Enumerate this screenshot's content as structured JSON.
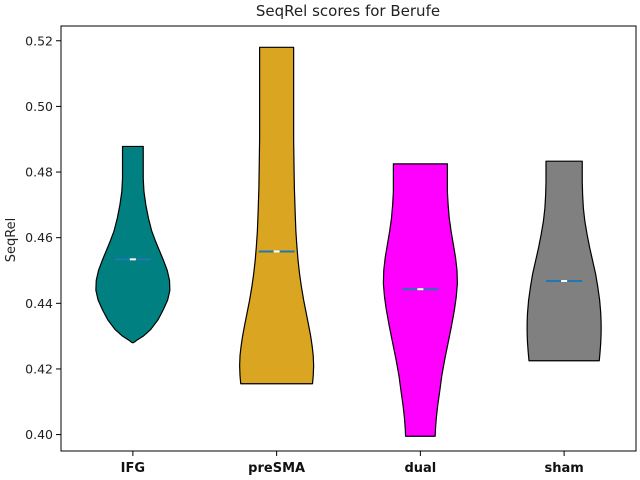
{
  "chart_data": {
    "type": "violin",
    "title": "SeqRel scores for Berufe",
    "xlabel": "",
    "ylabel": "SeqRel",
    "ylim": [
      0.395,
      0.5245
    ],
    "yticks": [
      "0.40",
      "0.42",
      "0.44",
      "0.46",
      "0.48",
      "0.50",
      "0.52"
    ],
    "grid": false,
    "categories": [
      "IFG",
      "preSMA",
      "dual",
      "sham"
    ],
    "series": [
      {
        "category": "IFG",
        "color": "#008080",
        "min": 0.428,
        "max": 0.4878,
        "median": 0.4534,
        "profile": [
          [
            0.428,
            0.02
          ],
          [
            0.4287,
            0.1
          ],
          [
            0.43,
            0.28
          ],
          [
            0.432,
            0.48
          ],
          [
            0.435,
            0.68
          ],
          [
            0.438,
            0.82
          ],
          [
            0.441,
            0.94
          ],
          [
            0.444,
            1.0
          ],
          [
            0.447,
            0.99
          ],
          [
            0.45,
            0.93
          ],
          [
            0.453,
            0.83
          ],
          [
            0.456,
            0.72
          ],
          [
            0.459,
            0.61
          ],
          [
            0.462,
            0.51
          ],
          [
            0.466,
            0.42
          ],
          [
            0.47,
            0.35
          ],
          [
            0.474,
            0.3
          ],
          [
            0.478,
            0.28
          ],
          [
            0.482,
            0.28
          ],
          [
            0.485,
            0.28
          ],
          [
            0.4878,
            0.28
          ]
        ]
      },
      {
        "category": "preSMA",
        "color": "#DAA520",
        "min": 0.4155,
        "max": 0.518,
        "median": 0.4558,
        "profile": [
          [
            0.4155,
            0.97
          ],
          [
            0.418,
            0.99
          ],
          [
            0.421,
            1.0
          ],
          [
            0.424,
            0.99
          ],
          [
            0.427,
            0.96
          ],
          [
            0.43,
            0.92
          ],
          [
            0.433,
            0.87
          ],
          [
            0.437,
            0.8
          ],
          [
            0.441,
            0.73
          ],
          [
            0.445,
            0.67
          ],
          [
            0.449,
            0.62
          ],
          [
            0.453,
            0.58
          ],
          [
            0.457,
            0.55
          ],
          [
            0.462,
            0.52
          ],
          [
            0.468,
            0.5
          ],
          [
            0.475,
            0.48
          ],
          [
            0.482,
            0.47
          ],
          [
            0.49,
            0.46
          ],
          [
            0.498,
            0.46
          ],
          [
            0.506,
            0.46
          ],
          [
            0.512,
            0.46
          ],
          [
            0.518,
            0.46
          ]
        ]
      },
      {
        "category": "dual",
        "color": "#FF00FF",
        "min": 0.3995,
        "max": 0.4825,
        "median": 0.4443,
        "profile": [
          [
            0.3995,
            0.4
          ],
          [
            0.402,
            0.41
          ],
          [
            0.405,
            0.43
          ],
          [
            0.409,
            0.47
          ],
          [
            0.413,
            0.52
          ],
          [
            0.418,
            0.58
          ],
          [
            0.423,
            0.66
          ],
          [
            0.428,
            0.75
          ],
          [
            0.433,
            0.84
          ],
          [
            0.438,
            0.92
          ],
          [
            0.442,
            0.97
          ],
          [
            0.446,
            1.0
          ],
          [
            0.45,
            0.99
          ],
          [
            0.454,
            0.95
          ],
          [
            0.458,
            0.89
          ],
          [
            0.462,
            0.83
          ],
          [
            0.466,
            0.78
          ],
          [
            0.47,
            0.75
          ],
          [
            0.474,
            0.73
          ],
          [
            0.478,
            0.73
          ],
          [
            0.4825,
            0.73
          ]
        ]
      },
      {
        "category": "sham",
        "color": "#808080",
        "min": 0.4225,
        "max": 0.4833,
        "median": 0.4468,
        "profile": [
          [
            0.4225,
            0.95
          ],
          [
            0.425,
            0.97
          ],
          [
            0.428,
            0.99
          ],
          [
            0.431,
            1.0
          ],
          [
            0.434,
            1.0
          ],
          [
            0.437,
            0.99
          ],
          [
            0.441,
            0.96
          ],
          [
            0.445,
            0.91
          ],
          [
            0.449,
            0.85
          ],
          [
            0.453,
            0.77
          ],
          [
            0.457,
            0.69
          ],
          [
            0.461,
            0.62
          ],
          [
            0.465,
            0.56
          ],
          [
            0.469,
            0.52
          ],
          [
            0.473,
            0.5
          ],
          [
            0.477,
            0.49
          ],
          [
            0.48,
            0.49
          ],
          [
            0.4833,
            0.49
          ]
        ]
      }
    ]
  }
}
